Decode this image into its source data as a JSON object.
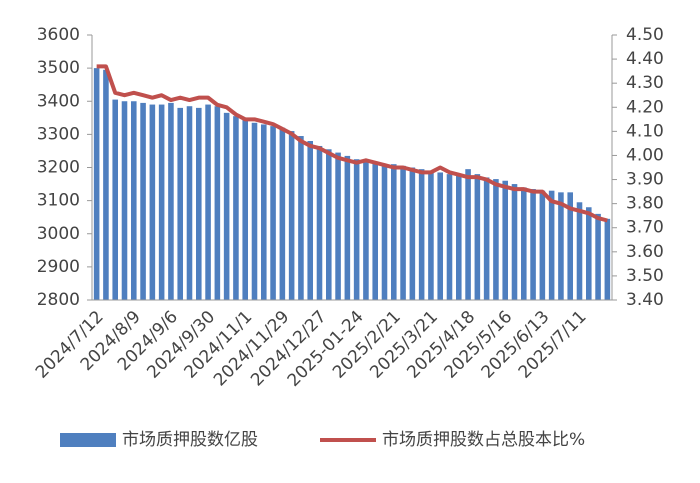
{
  "chart_data": {
    "type": "bar_line",
    "categories": [
      "2024/7/12",
      null,
      null,
      null,
      "2024/8/9",
      null,
      null,
      null,
      "2024/9/6",
      null,
      null,
      null,
      "2024/9/30",
      null,
      null,
      null,
      "2024/11/1",
      null,
      null,
      null,
      "2024/11/29",
      null,
      null,
      null,
      "2024/12/27",
      null,
      null,
      null,
      "2025-01-24",
      null,
      null,
      null,
      "2025/2/21",
      null,
      null,
      null,
      "2025/3/21",
      null,
      null,
      null,
      "2025/4/18",
      null,
      null,
      null,
      "2025/5/16",
      null,
      null,
      null,
      "2025/6/13",
      null,
      null,
      null,
      "2025/7/11",
      null,
      null,
      null
    ],
    "series": [
      {
        "name": "市场质押股数亿股",
        "color": "#4f7fbf",
        "type": "bar",
        "values": [
          3500,
          3495,
          3405,
          3400,
          3400,
          3395,
          3390,
          3390,
          3395,
          3380,
          3385,
          3380,
          3390,
          3385,
          3365,
          3355,
          3345,
          3335,
          3330,
          3325,
          3320,
          3310,
          3295,
          3280,
          3265,
          3255,
          3245,
          3235,
          3225,
          3220,
          3215,
          3210,
          3210,
          3205,
          3200,
          3195,
          3190,
          3185,
          3180,
          3180,
          3195,
          3180,
          3170,
          3165,
          3160,
          3150,
          3140,
          3135,
          3130,
          3130,
          3125,
          3125,
          3095,
          3080,
          3060,
          3045
        ]
      },
      {
        "name": "市场质押股数占总股本比%",
        "color": "#c0504d",
        "type": "line",
        "axis": "y2",
        "values": [
          4.37,
          4.37,
          4.26,
          4.25,
          4.26,
          4.25,
          4.24,
          4.25,
          4.23,
          4.24,
          4.23,
          4.24,
          4.24,
          4.21,
          4.2,
          4.17,
          4.15,
          4.15,
          4.14,
          4.13,
          4.11,
          4.09,
          4.06,
          4.04,
          4.03,
          4.01,
          3.99,
          3.98,
          3.97,
          3.98,
          3.97,
          3.96,
          3.95,
          3.95,
          3.94,
          3.93,
          3.93,
          3.95,
          3.93,
          3.92,
          3.91,
          3.91,
          3.9,
          3.88,
          3.87,
          3.86,
          3.86,
          3.85,
          3.85,
          3.81,
          3.8,
          3.78,
          3.77,
          3.76,
          3.74,
          3.73
        ]
      }
    ],
    "ylim": [
      2800,
      3600
    ],
    "yticks": [
      2800,
      2900,
      3000,
      3100,
      3200,
      3300,
      3400,
      3500,
      3600
    ],
    "y2lim": [
      3.4,
      4.5
    ],
    "y2ticks": [
      {
        "value": 3.4,
        "label": "3.40"
      },
      {
        "value": 3.5,
        "label": "3.50"
      },
      {
        "value": 3.6,
        "label": "3.60"
      },
      {
        "value": 3.7,
        "label": "3.70"
      },
      {
        "value": 3.8,
        "label": "3.80"
      },
      {
        "value": 3.9,
        "label": "3.90"
      },
      {
        "value": 4.0,
        "label": "4.00"
      },
      {
        "value": 4.1,
        "label": "4.10"
      },
      {
        "value": 4.2,
        "label": "4.20"
      },
      {
        "value": 4.3,
        "label": "4.30"
      },
      {
        "value": 4.4,
        "label": "4.40"
      },
      {
        "value": 4.5,
        "label": "4.50"
      }
    ],
    "grid": false,
    "legend": "bottom"
  }
}
